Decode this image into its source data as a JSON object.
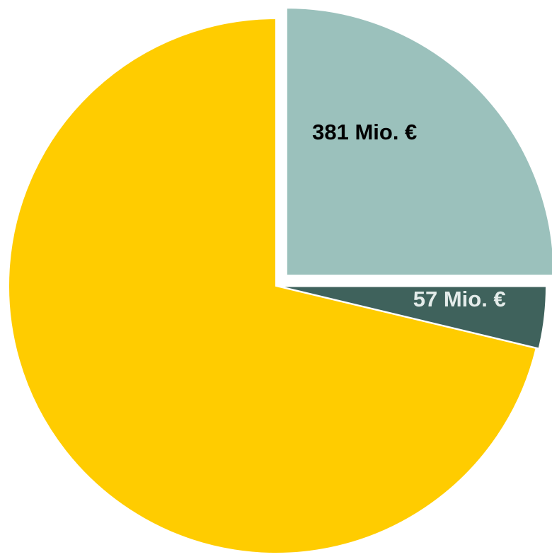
{
  "chart_data": {
    "type": "pie",
    "values": [
      381,
      57,
      1086
    ],
    "value_labels": [
      "381 Mio. €",
      "57 Mio. €",
      null
    ],
    "colors": [
      "#9bc1bc",
      "#3f625c",
      "#ffcc00"
    ],
    "label_colors": [
      "#000000",
      "#e4ecea",
      "#000000"
    ]
  }
}
